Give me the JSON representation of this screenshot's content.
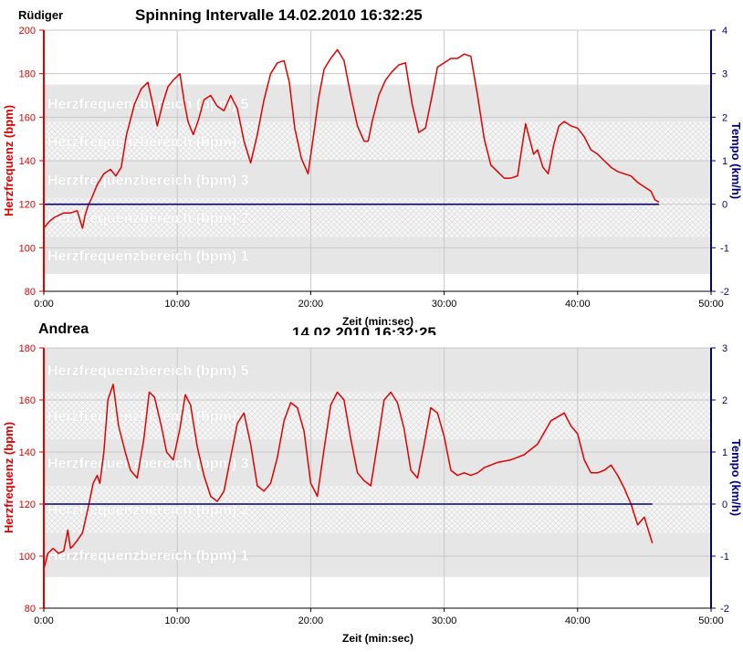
{
  "header": {
    "person": "Rüdiger",
    "title": "Spinning Intervalle  14.02.2010 16:32:25",
    "title_ghost": "14.02.2010 16:32:25"
  },
  "colors": {
    "hr_line": "#e00000",
    "tempo_line": "#000080",
    "zone_band": "#e6e6e6",
    "zone_hatch_bg": "#f6f6f6",
    "grid": "#c8c8c8",
    "zone_label": "#ffffff"
  },
  "chart_data": [
    {
      "type": "line",
      "person": "Rüdiger",
      "xlabel": "Zeit (min:sec)",
      "ylabel": "Herzfrequenz (bpm)",
      "y2label": "Tempo (km/h)",
      "xlim": [
        0,
        50
      ],
      "ylim": [
        80,
        200
      ],
      "y2lim": [
        -2,
        4
      ],
      "x_ticks": [
        "0:00",
        "10:00",
        "20:00",
        "30:00",
        "40:00",
        "50:00"
      ],
      "y_ticks": [
        "80",
        "100",
        "120",
        "140",
        "160",
        "180",
        "200"
      ],
      "y2_ticks": [
        "-2",
        "-1",
        "0",
        "1",
        "2",
        "3",
        "4"
      ],
      "grid": true,
      "zones": [
        {
          "label": "Herzfrequenzbereich (bpm) 1",
          "from": 88,
          "to": 105,
          "style": "solid"
        },
        {
          "label": "Herzfrequenzbereich (bpm) 2",
          "from": 105,
          "to": 123,
          "style": "hatch"
        },
        {
          "label": "Herzfrequenzbereich (bpm) 3",
          "from": 123,
          "to": 140,
          "style": "solid"
        },
        {
          "label": "Herzfrequenzbereich (bpm) 4",
          "from": 140,
          "to": 158,
          "style": "hatch"
        },
        {
          "label": "Herzfrequenzbereich (bpm) 5",
          "from": 158,
          "to": 175,
          "style": "solid"
        }
      ],
      "series": [
        {
          "axis": "left",
          "x": [
            0,
            0.4,
            0.8,
            1.5,
            2.0,
            2.5,
            2.9,
            3.1,
            3.3,
            3.6,
            4.0,
            4.5,
            5.0,
            5.4,
            5.8,
            6.2,
            6.8,
            7.3,
            7.8,
            8.2,
            8.5,
            8.9,
            9.3,
            9.7,
            10.2,
            10.5,
            10.8,
            11.2,
            11.6,
            12.0,
            12.5,
            13.0,
            13.5,
            14.0,
            14.5,
            15.0,
            15.5,
            16.0,
            16.5,
            17.0,
            17.5,
            18.0,
            18.4,
            18.8,
            19.3,
            19.8,
            20.2,
            20.6,
            21.0,
            21.5,
            22.0,
            22.5,
            23.0,
            23.5,
            24.0,
            24.3,
            24.6,
            25.1,
            25.6,
            26.1,
            26.6,
            27.1,
            27.6,
            28.1,
            28.6,
            29.1,
            29.5,
            30.0,
            30.5,
            31.0,
            31.5,
            32.0,
            32.5,
            33.0,
            33.5,
            34.0,
            34.5,
            35.0,
            35.5,
            35.8,
            36.1,
            36.4,
            36.7,
            37.0,
            37.4,
            37.8,
            38.2,
            38.6,
            39.0,
            39.5,
            40.0,
            40.5,
            41.0,
            41.5,
            42.0,
            42.5,
            43.0,
            43.5,
            44.0,
            44.5,
            45.0,
            45.5,
            45.8,
            46.1
          ],
          "y": [
            109,
            112,
            114,
            116,
            116,
            117,
            109,
            115,
            119,
            123,
            129,
            134,
            136,
            133,
            137,
            152,
            166,
            173,
            176,
            165,
            156,
            166,
            174,
            177,
            180,
            168,
            158,
            152,
            159,
            168,
            170,
            165,
            163,
            170,
            164,
            149,
            139,
            152,
            168,
            180,
            185,
            186,
            176,
            155,
            141,
            134,
            151,
            169,
            182,
            187,
            191,
            186,
            170,
            156,
            149,
            149,
            158,
            170,
            177,
            181,
            184,
            185,
            166,
            153,
            155,
            170,
            183,
            185,
            187,
            187,
            189,
            188,
            170,
            150,
            138,
            135,
            132,
            132,
            133,
            145,
            157,
            150,
            143,
            145,
            137,
            134,
            147,
            156,
            158,
            156,
            155,
            151,
            145,
            143,
            140,
            137,
            135,
            134,
            133,
            130,
            128,
            126,
            122,
            121
          ],
          "color": "#e00000"
        },
        {
          "axis": "right",
          "x": [
            0,
            46.1
          ],
          "y": [
            0,
            0
          ],
          "color": "#000080"
        }
      ]
    },
    {
      "type": "line",
      "person": "Andrea",
      "xlabel": "Zeit (min:sec)",
      "ylabel": "Herzfrequenz (bpm)",
      "y2label": "Tempo (km/h)",
      "xlim": [
        0,
        50
      ],
      "ylim": [
        80,
        180
      ],
      "y2lim": [
        -2,
        3
      ],
      "x_ticks": [
        "0:00",
        "10:00",
        "20:00",
        "30:00",
        "40:00",
        "50:00"
      ],
      "y_ticks": [
        "80",
        "100",
        "120",
        "140",
        "160",
        "180"
      ],
      "y2_ticks": [
        "-2",
        "-1",
        "0",
        "1",
        "2",
        "3"
      ],
      "grid": true,
      "zones": [
        {
          "label": "Herzfrequenzbereich (bpm) 1",
          "from": 92,
          "to": 109,
          "style": "solid"
        },
        {
          "label": "Herzfrequenzbereich (bpm) 2",
          "from": 109,
          "to": 127,
          "style": "hatch"
        },
        {
          "label": "Herzfrequenzbereich (bpm) 3",
          "from": 127,
          "to": 145,
          "style": "solid"
        },
        {
          "label": "Herzfrequenzbereich (bpm) 4",
          "from": 145,
          "to": 163,
          "style": "hatch"
        },
        {
          "label": "Herzfrequenzbereich (bpm) 5",
          "from": 163,
          "to": 180,
          "style": "solid"
        }
      ],
      "series": [
        {
          "axis": "left",
          "x": [
            0,
            0.3,
            0.7,
            1.1,
            1.5,
            1.8,
            2.0,
            2.2,
            2.5,
            2.9,
            3.3,
            3.7,
            4.0,
            4.2,
            4.5,
            4.8,
            5.2,
            5.6,
            6.1,
            6.5,
            7.0,
            7.5,
            7.9,
            8.3,
            8.8,
            9.2,
            9.7,
            10.2,
            10.6,
            11.0,
            11.5,
            12.0,
            12.5,
            13.0,
            13.5,
            14.0,
            14.5,
            15.0,
            15.5,
            16.0,
            16.5,
            17.0,
            17.5,
            18.0,
            18.5,
            19.0,
            19.5,
            20.0,
            20.5,
            21.0,
            21.5,
            22.0,
            22.5,
            23.0,
            23.5,
            24.0,
            24.5,
            25.0,
            25.5,
            26.0,
            26.5,
            27.0,
            27.5,
            28.0,
            28.5,
            29.0,
            29.5,
            30.0,
            30.5,
            31.0,
            31.5,
            32.0,
            32.5,
            33.0,
            34.0,
            35.0,
            36.0,
            37.0,
            38.0,
            39.0,
            39.5,
            40.0,
            40.5,
            41.0,
            41.5,
            42.0,
            42.5,
            43.0,
            43.5,
            44.0,
            44.5,
            45.0,
            45.3,
            45.6
          ],
          "y": [
            95,
            101,
            103,
            101,
            102,
            110,
            103,
            104,
            106,
            109,
            118,
            128,
            131,
            128,
            140,
            160,
            166,
            150,
            140,
            133,
            130,
            145,
            163,
            161,
            150,
            140,
            137,
            149,
            162,
            158,
            142,
            131,
            123,
            121,
            125,
            138,
            151,
            155,
            143,
            127,
            125,
            128,
            138,
            152,
            159,
            157,
            148,
            128,
            123,
            141,
            158,
            163,
            160,
            145,
            132,
            129,
            127,
            143,
            160,
            163,
            159,
            149,
            133,
            130,
            143,
            157,
            155,
            146,
            133,
            131,
            132,
            131,
            132,
            134,
            136,
            137,
            139,
            143,
            152,
            155,
            150,
            147,
            137,
            132,
            132,
            133,
            135,
            131,
            126,
            120,
            112,
            115,
            110,
            105
          ],
          "color": "#e00000"
        },
        {
          "axis": "right",
          "x": [
            0,
            45.6
          ],
          "y": [
            0,
            0
          ],
          "color": "#000080"
        }
      ]
    }
  ]
}
